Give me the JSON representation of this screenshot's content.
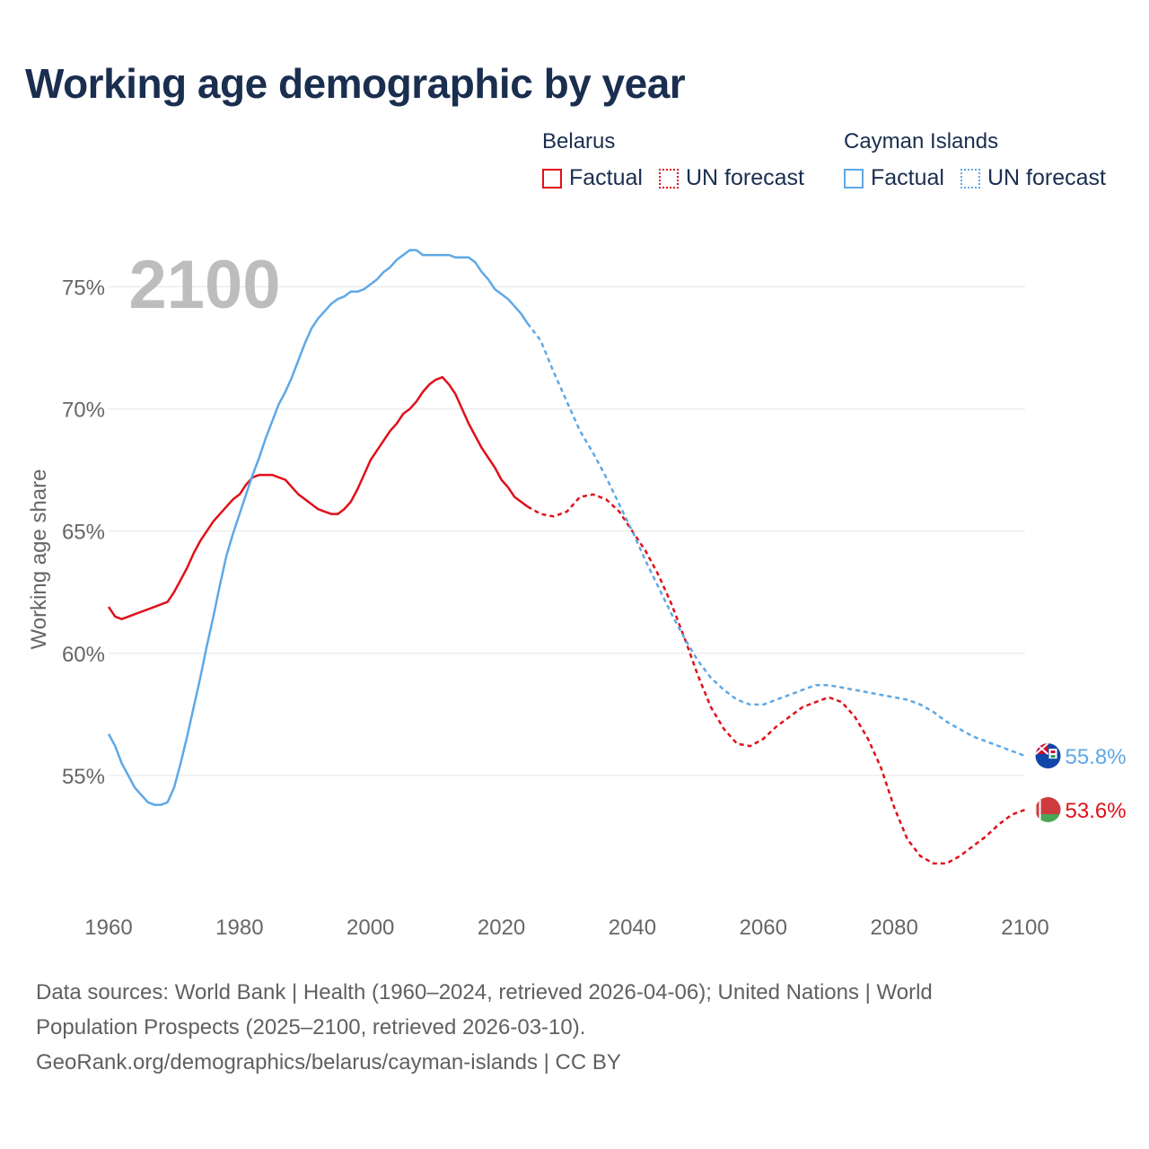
{
  "chart_data": {
    "type": "line",
    "title": "Working age demographic by year",
    "ylabel": "Working age share",
    "xlabel": "",
    "year_watermark": "2100",
    "xlim": [
      1960,
      2100
    ],
    "ylim": [
      50,
      77
    ],
    "x_ticks": [
      "1960",
      "1980",
      "2000",
      "2020",
      "2040",
      "2060",
      "2080",
      "2100"
    ],
    "x_tick_values": [
      1960,
      1980,
      2000,
      2020,
      2040,
      2060,
      2080,
      2100
    ],
    "y_ticks": [
      "55%",
      "60%",
      "65%",
      "70%",
      "75%"
    ],
    "y_tick_values": [
      55,
      60,
      65,
      70,
      75
    ],
    "grid": true,
    "legend_position": "top-right",
    "legend_labels": {
      "factual": "Factual",
      "forecast": "UN forecast"
    },
    "series": [
      {
        "name": "Belarus",
        "color": "#e0101a",
        "end_label": "53.6%",
        "factual": {
          "x": [
            1960,
            1961,
            1962,
            1963,
            1964,
            1965,
            1966,
            1967,
            1968,
            1969,
            1970,
            1971,
            1972,
            1973,
            1974,
            1975,
            1976,
            1977,
            1978,
            1979,
            1980,
            1981,
            1982,
            1983,
            1984,
            1985,
            1986,
            1987,
            1988,
            1989,
            1990,
            1991,
            1992,
            1993,
            1994,
            1995,
            1996,
            1997,
            1998,
            1999,
            2000,
            2001,
            2002,
            2003,
            2004,
            2005,
            2006,
            2007,
            2008,
            2009,
            2010,
            2011,
            2012,
            2013,
            2014,
            2015,
            2016,
            2017,
            2018,
            2019,
            2020,
            2021,
            2022,
            2023,
            2024
          ],
          "y": [
            61.9,
            61.5,
            61.4,
            61.5,
            61.6,
            61.7,
            61.8,
            61.9,
            62.0,
            62.1,
            62.5,
            63.0,
            63.5,
            64.1,
            64.6,
            65.0,
            65.4,
            65.7,
            66.0,
            66.3,
            66.5,
            66.9,
            67.2,
            67.3,
            67.3,
            67.3,
            67.2,
            67.1,
            66.8,
            66.5,
            66.3,
            66.1,
            65.9,
            65.8,
            65.7,
            65.7,
            65.9,
            66.2,
            66.7,
            67.3,
            67.9,
            68.3,
            68.7,
            69.1,
            69.4,
            69.8,
            70.0,
            70.3,
            70.7,
            71.0,
            71.2,
            71.3,
            71.0,
            70.6,
            70.0,
            69.4,
            68.9,
            68.4,
            68.0,
            67.6,
            67.1,
            66.8,
            66.4,
            66.2,
            66.0
          ]
        },
        "forecast": {
          "x": [
            2024,
            2026,
            2028,
            2030,
            2032,
            2034,
            2036,
            2038,
            2040,
            2042,
            2044,
            2046,
            2048,
            2050,
            2052,
            2054,
            2056,
            2058,
            2060,
            2062,
            2064,
            2066,
            2068,
            2070,
            2072,
            2074,
            2076,
            2078,
            2080,
            2082,
            2084,
            2086,
            2088,
            2090,
            2092,
            2094,
            2096,
            2098,
            2100
          ],
          "y": [
            66.0,
            65.7,
            65.6,
            65.8,
            66.4,
            66.5,
            66.3,
            65.8,
            65.0,
            64.2,
            63.2,
            62.0,
            60.6,
            59.1,
            57.8,
            56.9,
            56.3,
            56.2,
            56.5,
            57.0,
            57.4,
            57.8,
            58.0,
            58.2,
            58.0,
            57.4,
            56.5,
            55.3,
            53.7,
            52.4,
            51.7,
            51.4,
            51.4,
            51.7,
            52.1,
            52.5,
            53.0,
            53.4,
            53.6
          ]
        }
      },
      {
        "name": "Cayman Islands",
        "color": "#5ea8e6",
        "end_label": "55.8%",
        "factual": {
          "x": [
            1960,
            1961,
            1962,
            1963,
            1964,
            1965,
            1966,
            1967,
            1968,
            1969,
            1970,
            1971,
            1972,
            1973,
            1974,
            1975,
            1976,
            1977,
            1978,
            1979,
            1980,
            1981,
            1982,
            1983,
            1984,
            1985,
            1986,
            1987,
            1988,
            1989,
            1990,
            1991,
            1992,
            1993,
            1994,
            1995,
            1996,
            1997,
            1998,
            1999,
            2000,
            2001,
            2002,
            2003,
            2004,
            2005,
            2006,
            2007,
            2008,
            2009,
            2010,
            2011,
            2012,
            2013,
            2014,
            2015,
            2016,
            2017,
            2018,
            2019,
            2020,
            2021,
            2022,
            2023,
            2024
          ],
          "y": [
            56.7,
            56.2,
            55.5,
            55.0,
            54.5,
            54.2,
            53.9,
            53.8,
            53.8,
            53.9,
            54.5,
            55.5,
            56.6,
            57.8,
            59.0,
            60.3,
            61.5,
            62.8,
            64.0,
            64.9,
            65.7,
            66.5,
            67.3,
            68.0,
            68.8,
            69.5,
            70.2,
            70.7,
            71.3,
            72.0,
            72.7,
            73.3,
            73.7,
            74.0,
            74.3,
            74.5,
            74.6,
            74.8,
            74.8,
            74.9,
            75.1,
            75.3,
            75.6,
            75.8,
            76.1,
            76.3,
            76.5,
            76.5,
            76.3,
            76.3,
            76.3,
            76.3,
            76.3,
            76.2,
            76.2,
            76.2,
            76.0,
            75.6,
            75.3,
            74.9,
            74.7,
            74.5,
            74.2,
            73.9,
            73.5
          ]
        },
        "forecast": {
          "x": [
            2024,
            2026,
            2028,
            2030,
            2032,
            2034,
            2036,
            2038,
            2040,
            2042,
            2044,
            2046,
            2048,
            2050,
            2052,
            2054,
            2056,
            2058,
            2060,
            2062,
            2064,
            2066,
            2068,
            2070,
            2072,
            2074,
            2076,
            2078,
            2080,
            2082,
            2084,
            2086,
            2088,
            2090,
            2092,
            2094,
            2096,
            2098,
            2100
          ],
          "y": [
            73.5,
            72.8,
            71.5,
            70.3,
            69.1,
            68.2,
            67.2,
            66.1,
            65.0,
            63.8,
            62.7,
            61.6,
            60.6,
            59.7,
            59.0,
            58.5,
            58.1,
            57.9,
            57.9,
            58.1,
            58.3,
            58.5,
            58.7,
            58.7,
            58.6,
            58.5,
            58.4,
            58.3,
            58.2,
            58.1,
            57.9,
            57.6,
            57.2,
            56.9,
            56.6,
            56.4,
            56.2,
            56.0,
            55.8
          ]
        }
      }
    ]
  },
  "legend": {
    "belarus_title": "Belarus",
    "cayman_title": "Cayman Islands",
    "factual": "Factual",
    "forecast": "UN forecast"
  },
  "footer": {
    "line1": "Data sources: World Bank | Health (1960–2024, retrieved 2026-04-06); United Nations | World",
    "line2": "Population Prospects (2025–2100, retrieved 2026-03-10).",
    "line3": "GeoRank.org/demographics/belarus/cayman-islands | CC BY"
  }
}
